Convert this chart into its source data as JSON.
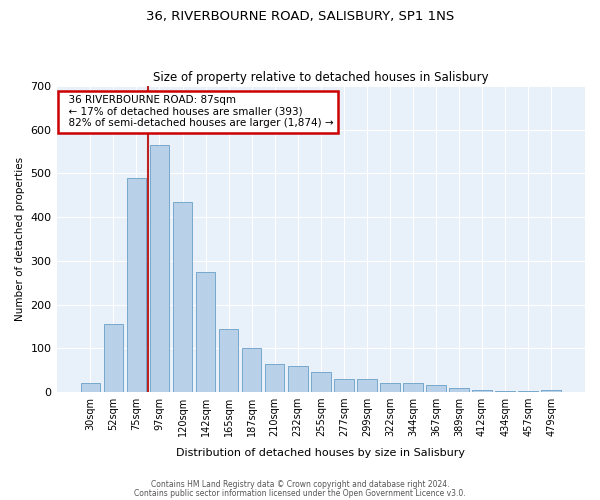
{
  "title": "36, RIVERBOURNE ROAD, SALISBURY, SP1 1NS",
  "subtitle": "Size of property relative to detached houses in Salisbury",
  "xlabel": "Distribution of detached houses by size in Salisbury",
  "ylabel": "Number of detached properties",
  "footer_line1": "Contains HM Land Registry data © Crown copyright and database right 2024.",
  "footer_line2": "Contains public sector information licensed under the Open Government Licence v3.0.",
  "annotation_line1": "  36 RIVERBOURNE ROAD: 87sqm",
  "annotation_line2": "  ← 17% of detached houses are smaller (393)",
  "annotation_line3": "  82% of semi-detached houses are larger (1,874) →",
  "bar_categories": [
    "30sqm",
    "52sqm",
    "75sqm",
    "97sqm",
    "120sqm",
    "142sqm",
    "165sqm",
    "187sqm",
    "210sqm",
    "232sqm",
    "255sqm",
    "277sqm",
    "299sqm",
    "322sqm",
    "344sqm",
    "367sqm",
    "389sqm",
    "412sqm",
    "434sqm",
    "457sqm",
    "479sqm"
  ],
  "bar_heights": [
    20,
    155,
    490,
    565,
    435,
    275,
    145,
    100,
    65,
    60,
    45,
    30,
    30,
    20,
    20,
    15,
    10,
    5,
    2,
    2,
    5
  ],
  "bar_color": "#b8d0e8",
  "bar_edge_color": "#6a9fc8",
  "vline_color": "#bb2222",
  "annotation_box_color": "#cc0000",
  "background_color": "#dce8f5",
  "plot_bg_color": "#e8f0fa",
  "ylim": [
    0,
    700
  ],
  "yticks": [
    0,
    100,
    200,
    300,
    400,
    500,
    600,
    700
  ],
  "vline_pos": 2.5,
  "figsize": [
    6.0,
    5.0
  ],
  "dpi": 100
}
